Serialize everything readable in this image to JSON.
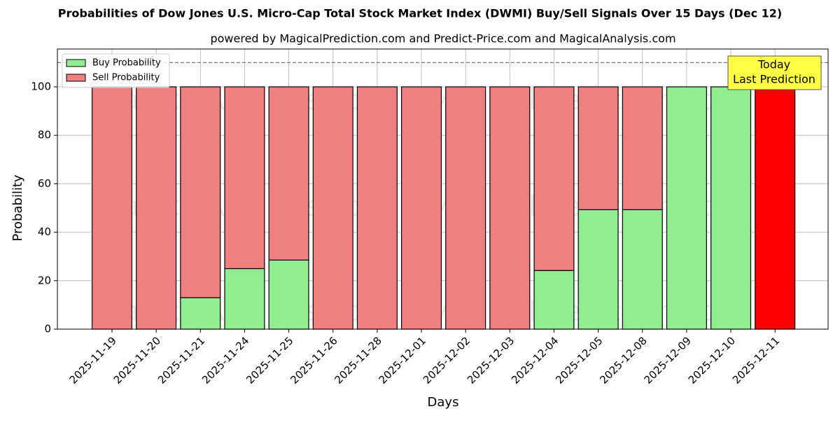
{
  "chart_data": {
    "type": "stacked_bar",
    "title": "Probabilities of Dow Jones U.S. Micro-Cap Total Stock Market Index (DWMI) Buy/Sell Signals Over 15 Days (Dec 12)",
    "subtitle": "powered by MagicalPrediction.com and Predict-Price.com and MagicalAnalysis.com",
    "x_label": "Days",
    "y_label": "Probability",
    "categories": [
      "2025-11-19",
      "2025-11-20",
      "2025-11-21",
      "2025-11-24",
      "2025-11-25",
      "2025-11-26",
      "2025-11-28",
      "2025-12-01",
      "2025-12-02",
      "2025-12-03",
      "2025-12-04",
      "2025-12-05",
      "2025-12-08",
      "2025-12-09",
      "2025-12-10",
      "2025-12-11"
    ],
    "series": [
      {
        "name": "Buy Probability",
        "color": "#90ee90",
        "values": [
          0,
          0,
          13,
          25,
          28.5,
          0,
          0,
          0,
          0,
          0,
          24.2,
          49.3,
          49.3,
          100,
          100,
          0
        ]
      },
      {
        "name": "Sell Probability",
        "color": "#f08080",
        "values": [
          100,
          100,
          87,
          75,
          71.5,
          100,
          100,
          100,
          100,
          100,
          75.8,
          50.7,
          50.7,
          0,
          0,
          100
        ],
        "colors": [
          "#f08080",
          "#f08080",
          "#f08080",
          "#f08080",
          "#f08080",
          "#f08080",
          "#f08080",
          "#f08080",
          "#f08080",
          "#f08080",
          "#f08080",
          "#f08080",
          "#f08080",
          "#f08080",
          "#f08080",
          "#ff0000"
        ]
      }
    ],
    "ylim": [
      0,
      115.6
    ],
    "yticks": [
      0,
      20,
      40,
      60,
      80,
      100
    ],
    "grid": true,
    "legend": "upper-left",
    "reference_line": 110,
    "annotation": [
      "Today",
      "Last Prediction"
    ],
    "watermarks": [
      "MagicalAnalysis.com",
      "MagicalPrediction.com"
    ]
  }
}
